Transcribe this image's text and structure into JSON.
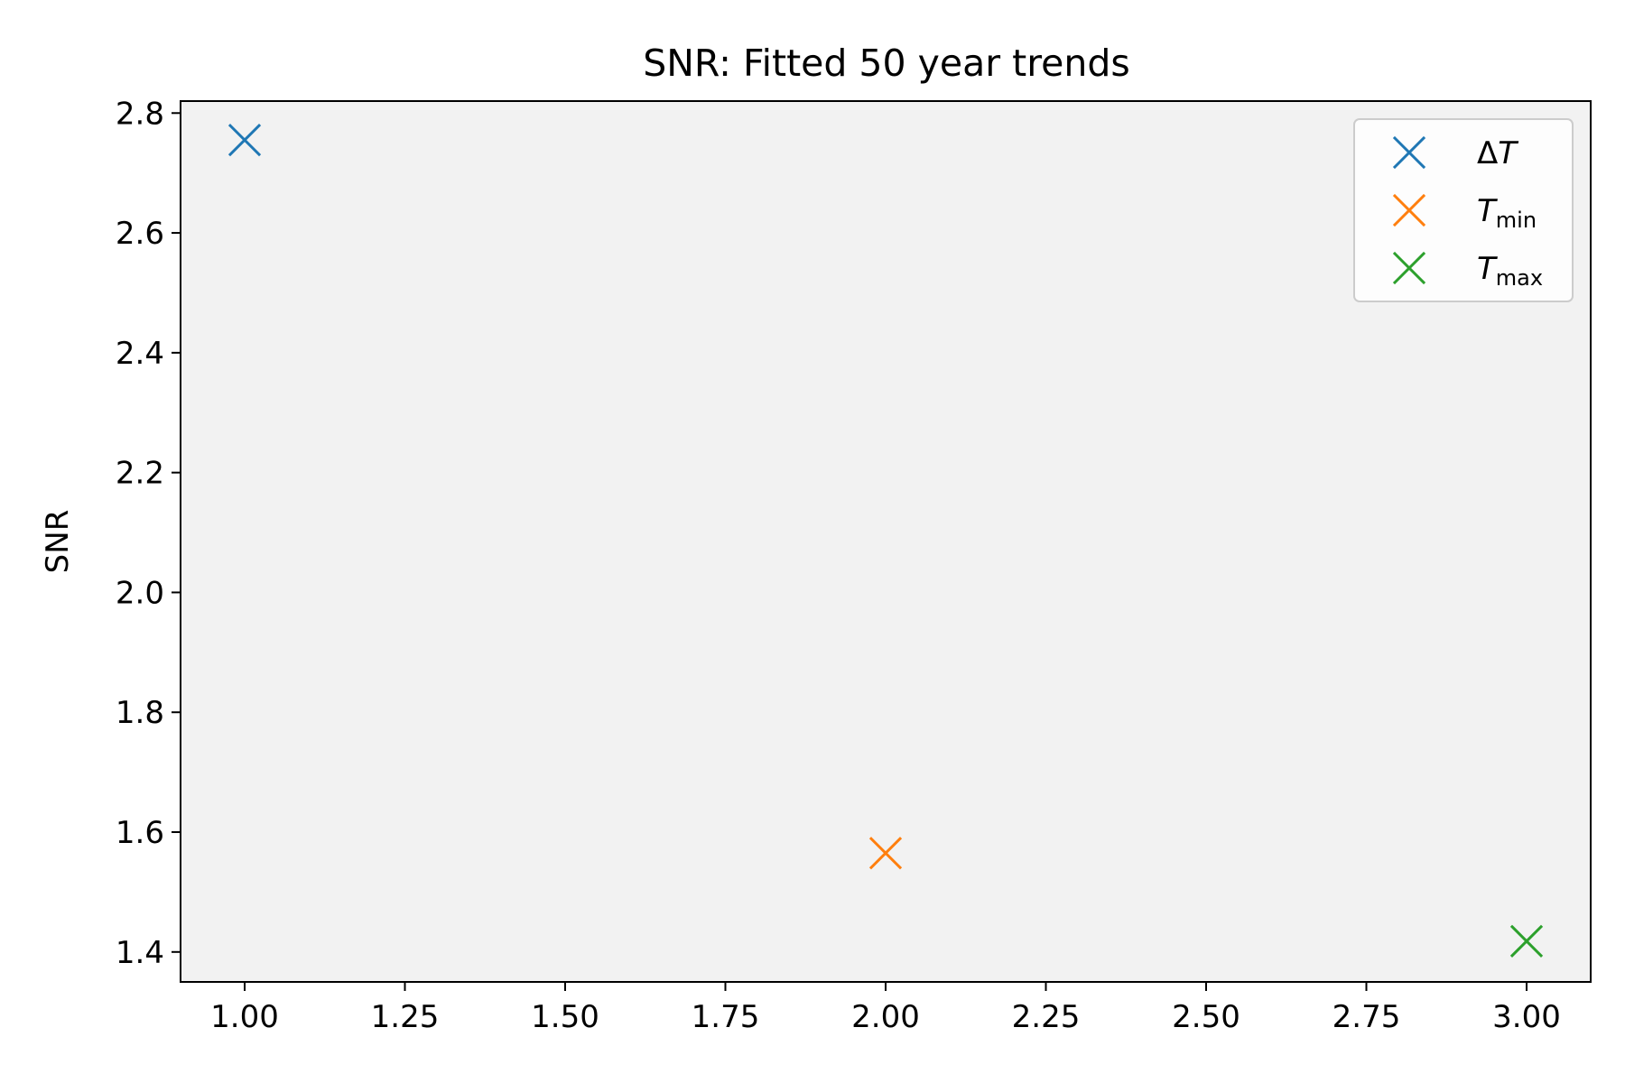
{
  "chart_data": {
    "type": "scatter",
    "title": "SNR: Fitted 50 year trends",
    "xlabel": "",
    "ylabel": "SNR",
    "xlim": [
      0.9,
      3.1
    ],
    "ylim": [
      1.35,
      2.82
    ],
    "xticks": [
      1.0,
      1.25,
      1.5,
      1.75,
      2.0,
      2.25,
      2.5,
      2.75,
      3.0
    ],
    "xtick_labels": [
      "1.00",
      "1.25",
      "1.50",
      "1.75",
      "2.00",
      "2.25",
      "2.50",
      "2.75",
      "3.00"
    ],
    "yticks": [
      1.4,
      1.6,
      1.8,
      2.0,
      2.2,
      2.4,
      2.6,
      2.8
    ],
    "ytick_labels": [
      "1.4",
      "1.6",
      "1.8",
      "2.0",
      "2.2",
      "2.4",
      "2.6",
      "2.8"
    ],
    "grid": false,
    "plot_background": "#f2f2f2",
    "legend_position": "top-right",
    "marker": "x",
    "series": [
      {
        "name": "ΔT",
        "label_main": "Δ",
        "label_italic": "T",
        "label_sub": "",
        "color": "#1f77b4",
        "points": [
          {
            "x": 1.0,
            "y": 2.755
          }
        ]
      },
      {
        "name": "T_min",
        "label_main": "",
        "label_italic": "T",
        "label_sub": "min",
        "color": "#ff7f0e",
        "points": [
          {
            "x": 2.0,
            "y": 1.565
          }
        ]
      },
      {
        "name": "T_max",
        "label_main": "",
        "label_italic": "T",
        "label_sub": "max",
        "color": "#2ca02c",
        "points": [
          {
            "x": 3.0,
            "y": 1.418
          }
        ]
      }
    ]
  }
}
